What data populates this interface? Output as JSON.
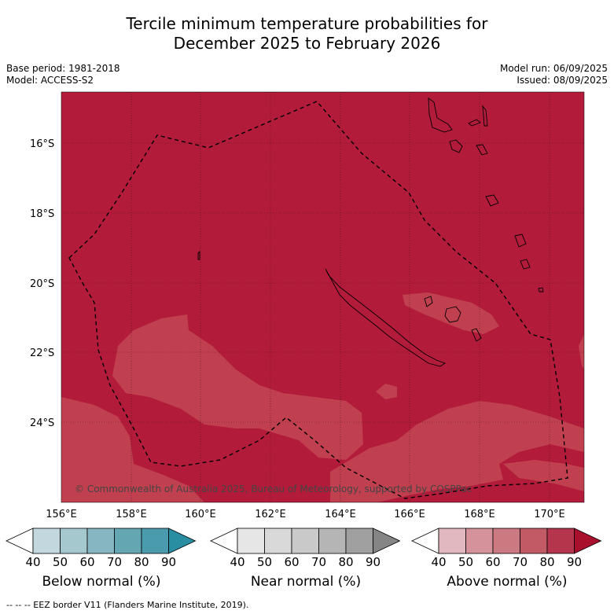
{
  "header": {
    "title_line1": "Tercile minimum temperature probabilities for",
    "title_line2": "December 2025 to February 2026",
    "base_period": "Base period: 1981-2018",
    "model": "Model: ACCESS-S2",
    "model_run": "Model run: 06/09/2025",
    "issued": "Issued: 08/09/2025"
  },
  "map": {
    "lat_labels": [
      "16°S",
      "18°S",
      "20°S",
      "22°S",
      "24°S"
    ],
    "lon_labels": [
      "156°E",
      "158°E",
      "160°E",
      "162°E",
      "164°E",
      "166°E",
      "168°E",
      "170°E"
    ],
    "copyright": "© Commonwealth of Australia 2025, Bureau of Meteorology, supported by COSPPac",
    "colors": {
      "above_80_90": "#b21c3a",
      "above_70_80": "#c0404f",
      "land": "none",
      "eez": "#000000"
    }
  },
  "legends": [
    {
      "title": "Below normal (%)",
      "ticks": [
        "40",
        "50",
        "60",
        "70",
        "80",
        "90"
      ],
      "colors": [
        "#ffffff",
        "#c2d8de",
        "#a5c8cf",
        "#86b6c1",
        "#65a6b3",
        "#4a9bad",
        "#2a8ea2"
      ]
    },
    {
      "title": "Near normal (%)",
      "ticks": [
        "40",
        "50",
        "60",
        "70",
        "80",
        "90"
      ],
      "colors": [
        "#ffffff",
        "#e6e6e6",
        "#d9d9d9",
        "#c9c9c9",
        "#b5b5b5",
        "#a0a0a0",
        "#858585"
      ]
    },
    {
      "title": "Above normal (%)",
      "ticks": [
        "40",
        "50",
        "60",
        "70",
        "80",
        "90"
      ],
      "colors": [
        "#ffffff",
        "#e1b8bf",
        "#d6929b",
        "#cc7a82",
        "#c25a66",
        "#b5354d",
        "#a8102c"
      ]
    }
  ],
  "footer": {
    "eez_note": "--  --  -- EEZ border V11 (Flanders Marine Institute, 2019)."
  }
}
